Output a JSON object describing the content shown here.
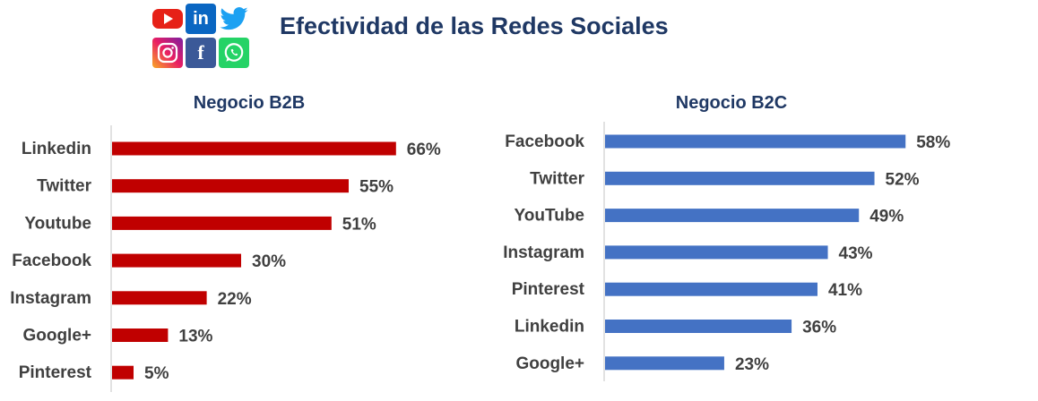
{
  "title": "Efectividad de las Redes Sociales",
  "logos": [
    {
      "name": "youtube-logo-icon",
      "color": "#e62117"
    },
    {
      "name": "linkedin-logo-icon",
      "color": "#0a66c2",
      "text": "in"
    },
    {
      "name": "twitter-logo-icon",
      "color": "#1da1f2"
    },
    {
      "name": "instagram-logo-icon",
      "color": "#c13584"
    },
    {
      "name": "facebook-logo-icon",
      "color": "#3b5998",
      "text": "f"
    },
    {
      "name": "whatsapp-logo-icon",
      "color": "#25d366"
    }
  ],
  "chart_data": [
    {
      "type": "bar",
      "orientation": "horizontal",
      "title": "Negocio B2B",
      "categories": [
        "Linkedin",
        "Twitter",
        "Youtube",
        "Facebook",
        "Instagram",
        "Google+",
        "Pinterest"
      ],
      "values": [
        66,
        55,
        51,
        30,
        22,
        13,
        5
      ],
      "value_labels": [
        "66%",
        "55%",
        "51%",
        "30%",
        "22%",
        "13%",
        "5%"
      ],
      "color": "#c00000",
      "xlim": [
        0,
        70
      ]
    },
    {
      "type": "bar",
      "orientation": "horizontal",
      "title": "Negocio B2C",
      "categories": [
        "Facebook",
        "Twitter",
        "YouTube",
        "Instagram",
        "Pinterest",
        "Linkedin",
        "Google+"
      ],
      "values": [
        58,
        52,
        49,
        43,
        41,
        36,
        23
      ],
      "value_labels": [
        "58%",
        "52%",
        "49%",
        "43%",
        "41%",
        "36%",
        "23%"
      ],
      "color": "#4472c4",
      "xlim": [
        0,
        70
      ]
    }
  ]
}
